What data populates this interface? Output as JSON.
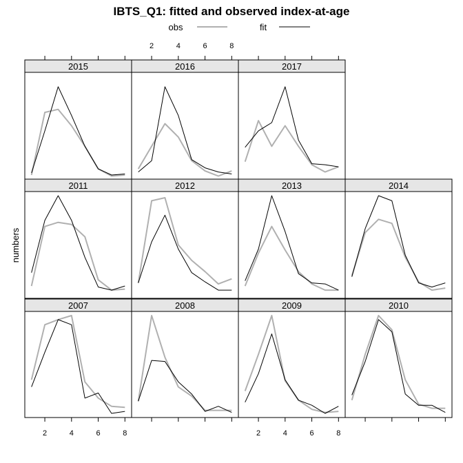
{
  "chart_data": {
    "type": "line",
    "title": "IBTS_Q1: fitted and observed index-at-age",
    "ylabel": "numbers",
    "xlabel": "",
    "x_ticks": [
      2,
      4,
      6,
      8
    ],
    "xlim": [
      0.5,
      8.5
    ],
    "legend": {
      "position": "top",
      "entries": [
        {
          "name": "obs",
          "color": "#b0b0b0"
        },
        {
          "name": "fit",
          "color": "#000000"
        }
      ]
    },
    "x": [
      1,
      2,
      3,
      4,
      5,
      6,
      7,
      8
    ],
    "panels": [
      {
        "year": "2015",
        "obs": [
          0.02,
          0.63,
          0.66,
          0.5,
          0.3,
          0.08,
          0.01,
          0.02
        ],
        "fit": [
          0.04,
          0.45,
          0.88,
          0.6,
          0.3,
          0.08,
          0.02,
          0.03
        ]
      },
      {
        "year": "2016",
        "obs": [
          0.08,
          0.3,
          0.52,
          0.39,
          0.16,
          0.06,
          0.01,
          0.06
        ],
        "fit": [
          0.05,
          0.16,
          0.88,
          0.6,
          0.17,
          0.09,
          0.05,
          0.03
        ]
      },
      {
        "year": "2017",
        "obs": [
          0.15,
          0.55,
          0.3,
          0.5,
          0.3,
          0.12,
          0.05,
          0.1
        ],
        "fit": [
          0.29,
          0.45,
          0.53,
          0.88,
          0.36,
          0.13,
          0.12,
          0.1
        ]
      },
      {
        "year": "2011",
        "obs": [
          0.1,
          0.68,
          0.72,
          0.7,
          0.58,
          0.16,
          0.06,
          0.07
        ],
        "fit": [
          0.23,
          0.74,
          0.98,
          0.74,
          0.38,
          0.09,
          0.06,
          0.1
        ]
      },
      {
        "year": "2012",
        "obs": [
          0.13,
          0.93,
          0.96,
          0.5,
          0.35,
          0.24,
          0.12,
          0.17
        ],
        "fit": [
          0.13,
          0.53,
          0.79,
          0.46,
          0.23,
          0.14,
          0.06,
          0.06
        ]
      },
      {
        "year": "2013",
        "obs": [
          0.1,
          0.42,
          0.68,
          0.45,
          0.24,
          0.12,
          0.06,
          0.06
        ],
        "fit": [
          0.15,
          0.46,
          0.98,
          0.63,
          0.22,
          0.13,
          0.12,
          0.06
        ]
      },
      {
        "year": "2014",
        "obs": [
          0.2,
          0.62,
          0.75,
          0.71,
          0.38,
          0.14,
          0.06,
          0.08
        ],
        "fit": [
          0.19,
          0.66,
          0.98,
          0.93,
          0.4,
          0.13,
          0.09,
          0.13
        ]
      },
      {
        "year": "2007",
        "obs": [
          0.35,
          0.89,
          0.94,
          0.98,
          0.33,
          0.17,
          0.09,
          0.08
        ],
        "fit": [
          0.28,
          0.62,
          0.94,
          0.89,
          0.17,
          0.22,
          0.02,
          0.04
        ]
      },
      {
        "year": "2008",
        "obs": [
          0.14,
          0.98,
          0.57,
          0.28,
          0.19,
          0.05,
          0.05,
          0.05
        ],
        "fit": [
          0.14,
          0.54,
          0.53,
          0.33,
          0.21,
          0.04,
          0.09,
          0.03
        ]
      },
      {
        "year": "2009",
        "obs": [
          0.24,
          0.6,
          0.98,
          0.34,
          0.15,
          0.06,
          0.03,
          0.04
        ],
        "fit": [
          0.13,
          0.41,
          0.8,
          0.35,
          0.15,
          0.1,
          0.02,
          0.09
        ]
      },
      {
        "year": "2010",
        "obs": [
          0.15,
          0.6,
          0.98,
          0.84,
          0.35,
          0.11,
          0.07,
          0.07
        ],
        "fit": [
          0.2,
          0.53,
          0.94,
          0.82,
          0.21,
          0.1,
          0.1,
          0.03
        ]
      }
    ]
  }
}
